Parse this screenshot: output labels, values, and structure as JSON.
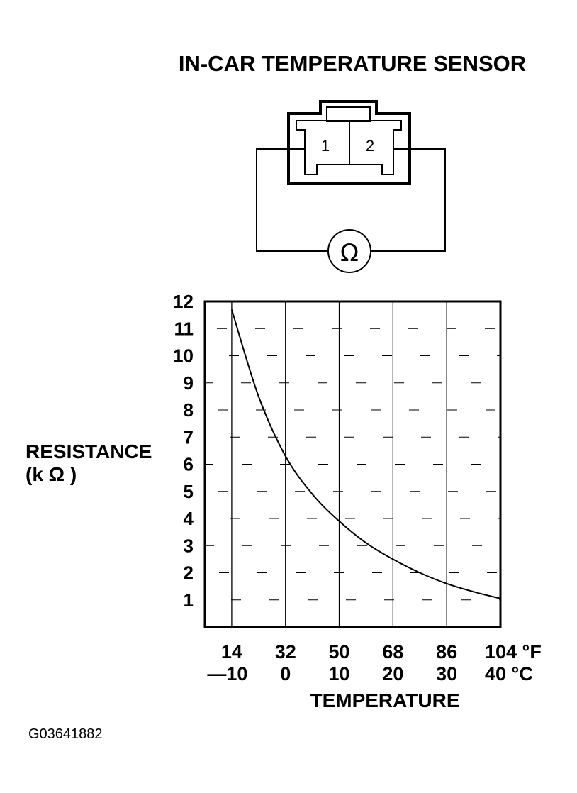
{
  "diagram": {
    "title": "IN-CAR TEMPERATURE SENSOR",
    "pins": [
      "1",
      "2"
    ],
    "meter_symbol": "Ω"
  },
  "figure_code": "G03641882",
  "chart_data": {
    "type": "line",
    "title": "",
    "ylabel": "RESISTANCE",
    "ylabel_unit": "(k Ω )",
    "xlabel": "TEMPERATURE",
    "ylim": [
      0,
      12
    ],
    "xlim_f": [
      5,
      104
    ],
    "yticks": [
      1,
      2,
      3,
      4,
      5,
      6,
      7,
      8,
      9,
      10,
      11,
      12
    ],
    "xticks_f": [
      "14",
      "32",
      "50",
      "68",
      "86",
      "104 °F"
    ],
    "xticks_c": [
      "—10",
      "0",
      "10",
      "20",
      "30",
      "40 °C"
    ],
    "xtick_values_f": [
      14,
      32,
      50,
      68,
      86,
      104
    ],
    "grid": true,
    "series": [
      {
        "x_f": [
          14,
          23,
          32,
          41,
          50,
          59,
          68,
          77,
          86,
          95,
          104
        ],
        "values": [
          11.7,
          8.5,
          6.3,
          4.9,
          3.9,
          3.1,
          2.5,
          2.0,
          1.6,
          1.3,
          1.05
        ]
      }
    ]
  }
}
